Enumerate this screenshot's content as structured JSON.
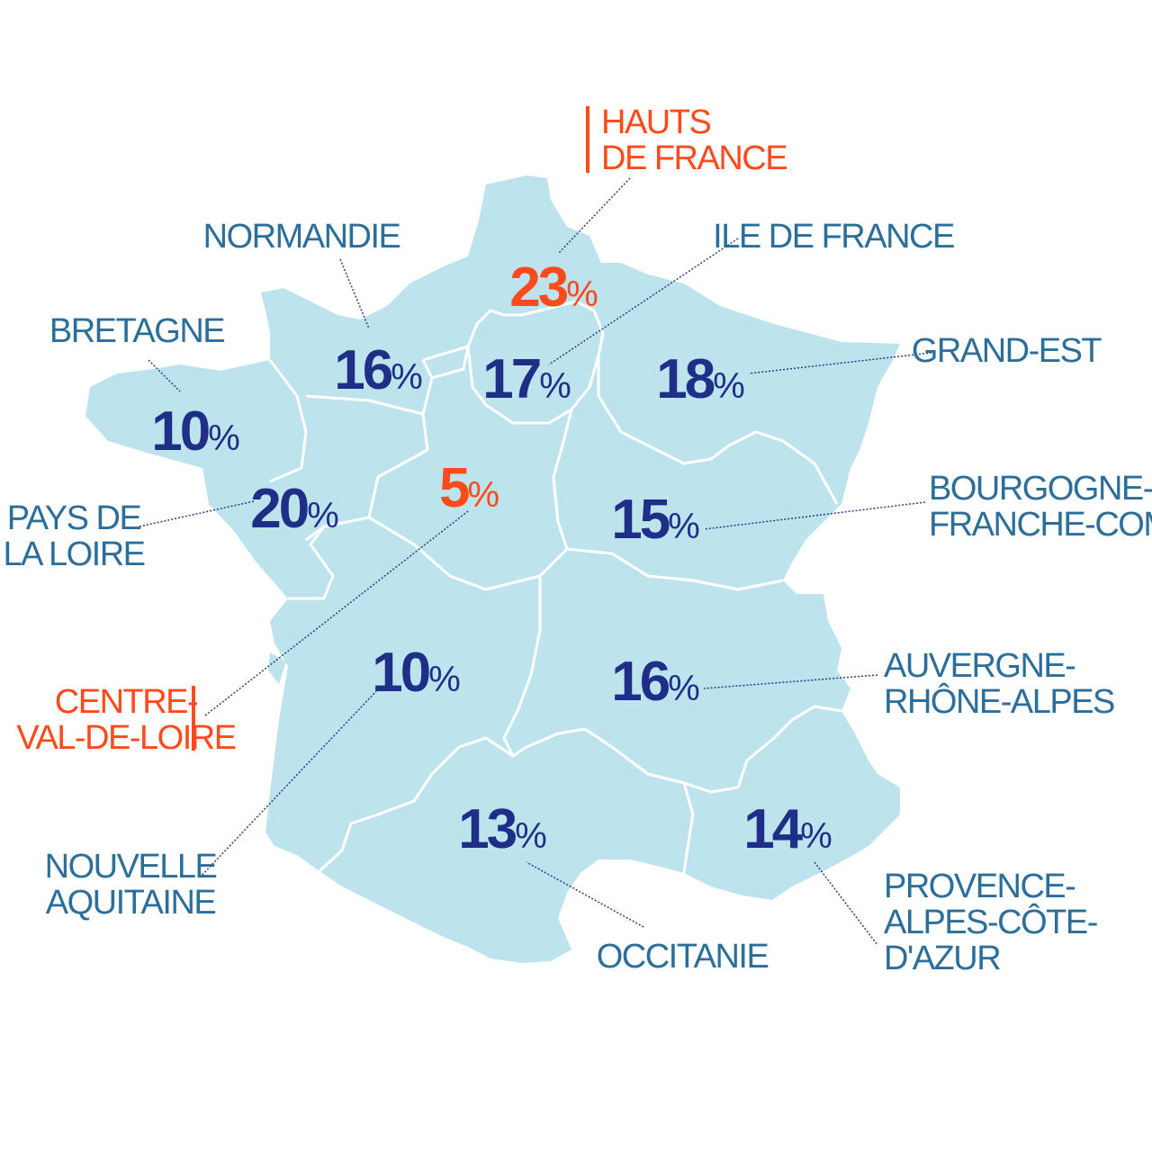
{
  "colors": {
    "land": "#bde3ec",
    "border": "#ffffff",
    "value": "#1f2f87",
    "label": "#2b6e9a",
    "highlight": "#ff4a1c",
    "leader": "#2d3a8c"
  },
  "regions": [
    {
      "key": "hauts-de-france",
      "label_lines": [
        "HAUTS",
        "DE FRANCE"
      ],
      "value": 23,
      "highlight": true
    },
    {
      "key": "normandie",
      "label_lines": [
        "NORMANDIE"
      ],
      "value": 16,
      "highlight": false
    },
    {
      "key": "ile-de-france",
      "label_lines": [
        "ILE DE FRANCE"
      ],
      "value": 17,
      "highlight": false
    },
    {
      "key": "bretagne",
      "label_lines": [
        "BRETAGNE"
      ],
      "value": 10,
      "highlight": false
    },
    {
      "key": "grand-est",
      "label_lines": [
        "GRAND-EST"
      ],
      "value": 18,
      "highlight": false
    },
    {
      "key": "pays-de-la-loire",
      "label_lines": [
        "PAYS DE",
        "LA LOIRE"
      ],
      "value": 20,
      "highlight": false
    },
    {
      "key": "centre-val-de-loire",
      "label_lines": [
        "CENTRE-",
        "VAL-DE-LOIRE"
      ],
      "value": 5,
      "highlight": true
    },
    {
      "key": "bourgogne-franche-comte",
      "label_lines": [
        "BOURGOGNE-",
        "FRANCHE-COMTÉ"
      ],
      "value": 15,
      "highlight": false
    },
    {
      "key": "nouvelle-aquitaine",
      "label_lines": [
        "NOUVELLE",
        "AQUITAINE"
      ],
      "value": 10,
      "highlight": false
    },
    {
      "key": "auvergne-rhone-alpes",
      "label_lines": [
        "AUVERGNE-",
        "RHÔNE-ALPES"
      ],
      "value": 16,
      "highlight": false
    },
    {
      "key": "occitanie",
      "label_lines": [
        "OCCITANIE"
      ],
      "value": 13,
      "highlight": false
    },
    {
      "key": "provence-alpes-cote-dazur",
      "label_lines": [
        "PROVENCE-",
        "ALPES-CÔTE-",
        "D'AZUR"
      ],
      "value": 14,
      "highlight": false
    }
  ],
  "unit": "%"
}
